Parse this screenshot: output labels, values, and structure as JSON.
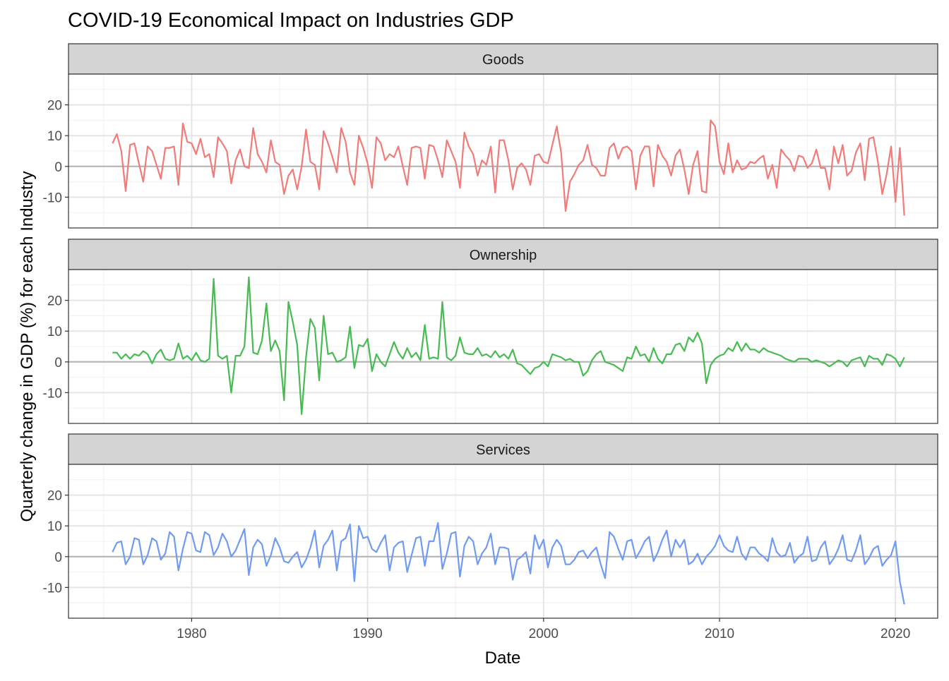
{
  "chart_data": {
    "type": "line",
    "title": "COVID-19 Economical Impact on Industries GDP",
    "xlabel": "Date",
    "ylabel": "Quarterly change in GDP (%) for each Industry",
    "xlim": [
      1973.0,
      2022.4
    ],
    "ylim": [
      -20,
      30
    ],
    "x_ticks": [
      1980,
      1990,
      2000,
      2010,
      2020
    ],
    "x_tick_labels": [
      "1980",
      "1990",
      "2000",
      "2010",
      "2020"
    ],
    "y_ticks": [
      -10,
      0,
      10,
      20
    ],
    "y_tick_labels": [
      "-10",
      "0",
      "10",
      "20"
    ],
    "grid": true,
    "legend": "none",
    "x_start": 1975.5,
    "x_step": 0.25,
    "series": [
      {
        "name": "Goods",
        "color": "#f07b78",
        "values": [
          7.5,
          10.5,
          5,
          -8,
          7,
          7.5,
          1,
          -5,
          6.5,
          5,
          0.5,
          -4,
          6,
          6,
          6.5,
          -6,
          14,
          8,
          7.5,
          4,
          9,
          3,
          4,
          -3.5,
          9.5,
          7.5,
          5,
          -5.5,
          2,
          5.5,
          0,
          -0.5,
          12.5,
          4,
          1.5,
          -2,
          8.5,
          1.5,
          0.5,
          -9,
          -3,
          -1,
          -7.5,
          0,
          12,
          1.5,
          0.5,
          -7.5,
          11.5,
          7.5,
          3,
          -2,
          12.5,
          8,
          -2,
          -6,
          10,
          6,
          1,
          -7,
          9.5,
          7.5,
          2,
          4,
          3,
          6.5,
          0,
          -6,
          6,
          6.5,
          6,
          -4,
          7,
          6.5,
          2,
          -3.5,
          8.5,
          5,
          1.5,
          -7,
          11,
          6.5,
          4,
          -3,
          2,
          0.5,
          6.5,
          -8.5,
          8.5,
          8.5,
          2,
          -7.5,
          -0.5,
          1,
          -1,
          -6,
          3.5,
          4,
          1.5,
          1,
          7,
          13,
          4.5,
          -14.5,
          -5,
          -2.5,
          0.5,
          2,
          7,
          0.5,
          -0.5,
          -3,
          -3,
          6,
          7.5,
          2.5,
          6,
          6.5,
          5,
          -7.5,
          3.5,
          6.5,
          6.5,
          -6.5,
          7,
          3.5,
          1.5,
          -3,
          3.5,
          5.5,
          -1,
          -9,
          0.5,
          5,
          -8,
          -8.5,
          15,
          13,
          1.5,
          -2.5,
          7.5,
          -2,
          2,
          -1,
          -0.5,
          1.5,
          1,
          2.5,
          3.5,
          -4,
          0.5,
          -7,
          5.5,
          3.5,
          2,
          -1.5,
          3.5,
          3,
          -0.5,
          1,
          5.5,
          -0.5,
          -0.5,
          -7.5,
          6.5,
          1,
          7,
          -3,
          -1.5,
          4.5,
          7.5,
          -4.5,
          9,
          9.5,
          1.5,
          -9,
          -2.5,
          6.5,
          -11.5,
          6,
          -16
        ]
      },
      {
        "name": "Ownership",
        "color": "#47bb52",
        "values": [
          3,
          3,
          1,
          2.5,
          1,
          2.5,
          2,
          3.5,
          2.5,
          -0.5,
          2.5,
          4,
          1,
          0.5,
          1,
          6,
          1,
          2,
          0.5,
          3,
          0.5,
          0,
          1,
          27,
          2,
          1,
          2,
          -10,
          2,
          2,
          5,
          27.5,
          3,
          2.5,
          7,
          19,
          3.5,
          7,
          3.5,
          -12.5,
          19.5,
          13,
          5.5,
          -17,
          1.5,
          14,
          11,
          -6,
          15,
          2.5,
          3,
          0,
          0.5,
          1.5,
          11.5,
          -2,
          5.5,
          5,
          7.5,
          -3,
          2.5,
          0,
          -1.5,
          2.5,
          6.5,
          3,
          1,
          4.5,
          1.5,
          3,
          0.5,
          12,
          1,
          1.5,
          1,
          19.5,
          1.5,
          0.5,
          2,
          8,
          3,
          2.5,
          2.5,
          4.5,
          2,
          2.5,
          1.5,
          3.5,
          1.5,
          2.5,
          1,
          4,
          -0.5,
          -1,
          -2.5,
          -4,
          -2,
          -1.5,
          0,
          -1.5,
          2.5,
          2,
          1.5,
          0.5,
          1,
          0,
          0,
          -4.5,
          -3,
          0.5,
          2.5,
          3.5,
          0,
          -0.5,
          -1,
          -2,
          -3,
          1.5,
          1,
          5,
          2,
          2.5,
          0,
          4.5,
          1,
          -0.5,
          2.5,
          2.5,
          5.5,
          6,
          3.5,
          8,
          6.5,
          9.5,
          6,
          -7,
          -1,
          1,
          2,
          2.5,
          4.5,
          3.5,
          6.5,
          3.5,
          6,
          4,
          4,
          3,
          4.5,
          3.5,
          3,
          2.5,
          2,
          1,
          0.5,
          0,
          1,
          1,
          1,
          0,
          0.5,
          0,
          -0.5,
          -1.5,
          -0.5,
          0.5,
          0,
          -1.5,
          0.5,
          1,
          1.5,
          -1.5,
          2,
          1,
          1,
          -1,
          2.5,
          2,
          1,
          -1.5,
          1.5
        ]
      },
      {
        "name": "Services",
        "color": "#6f9bf2",
        "values": [
          1.5,
          4.5,
          5,
          -2.5,
          0,
          6,
          5.5,
          -2.5,
          0.5,
          6,
          5,
          -1,
          1,
          8,
          6.5,
          -4.5,
          2.5,
          8,
          7.5,
          2,
          1.5,
          8,
          7,
          0.5,
          3,
          7.5,
          5,
          0,
          2,
          5.5,
          9,
          -6,
          3,
          5.5,
          4,
          -3,
          0.5,
          6,
          3,
          -1.5,
          -2,
          0,
          1.5,
          -3.5,
          -1,
          3,
          8.5,
          -3.5,
          3.5,
          5.5,
          8.5,
          -4.5,
          5,
          6,
          10.5,
          -8,
          10,
          6,
          6.5,
          2.5,
          1.5,
          4.5,
          7,
          -4.5,
          3,
          4.5,
          5,
          -5,
          0.5,
          6,
          6.5,
          -3,
          5,
          5,
          11,
          -4,
          1,
          7.5,
          8,
          -6.5,
          3.5,
          6.5,
          5,
          -2.5,
          1,
          3,
          7.5,
          -2.5,
          3,
          3,
          2.5,
          -7.5,
          -1,
          0,
          1.5,
          -5.5,
          7,
          2.5,
          5.5,
          -3.5,
          3,
          5.5,
          3.5,
          -2.5,
          -2.5,
          -1,
          1.5,
          2,
          -0.5,
          1.5,
          3,
          -2.5,
          -7,
          8,
          6.5,
          2.5,
          -1,
          5,
          5.5,
          -0.5,
          2,
          5,
          6.5,
          -1.5,
          1.5,
          5.5,
          8.5,
          0,
          5.5,
          3,
          5.5,
          -2.5,
          -1.5,
          1,
          -2.5,
          0,
          1.5,
          3.5,
          7,
          3.5,
          2,
          1.5,
          6.5,
          1,
          -1,
          3,
          3,
          1,
          0,
          -1.5,
          6,
          1.5,
          0,
          0.5,
          4.5,
          -2,
          0,
          1,
          6.5,
          -1.5,
          -1,
          3,
          5,
          -2.5,
          -0.5,
          2.5,
          7,
          -1,
          -1.5,
          2,
          7,
          -2.5,
          -0.5,
          2.5,
          3.5,
          -3,
          -1,
          0.5,
          5,
          -8,
          -15.5
        ]
      }
    ]
  }
}
